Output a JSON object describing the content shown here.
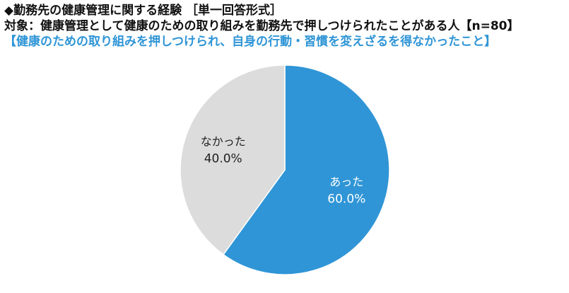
{
  "header": {
    "title": "◆勤務先の健康管理に関する経験 ［単一回答形式］",
    "target": "対象：健康管理として健康のための取り組みを勤務先で押しつけられたことがある人【n=80】",
    "question": "【健康のための取り組みを押しつけられ、自身の行動・習慣を変えざるを得なかったこと】"
  },
  "colors": {
    "yes": "#2f95d6",
    "no": "#dcdcdc",
    "yes_text": "#ffffff",
    "no_text": "#222222",
    "question_text": "#2f95d6"
  },
  "chart_data": {
    "type": "pie",
    "start": "12 o'clock",
    "direction": "clockwise",
    "slices": [
      {
        "label": "あった",
        "value": 60.0,
        "display": "60.0%"
      },
      {
        "label": "なかった",
        "value": 40.0,
        "display": "40.0%"
      }
    ]
  }
}
